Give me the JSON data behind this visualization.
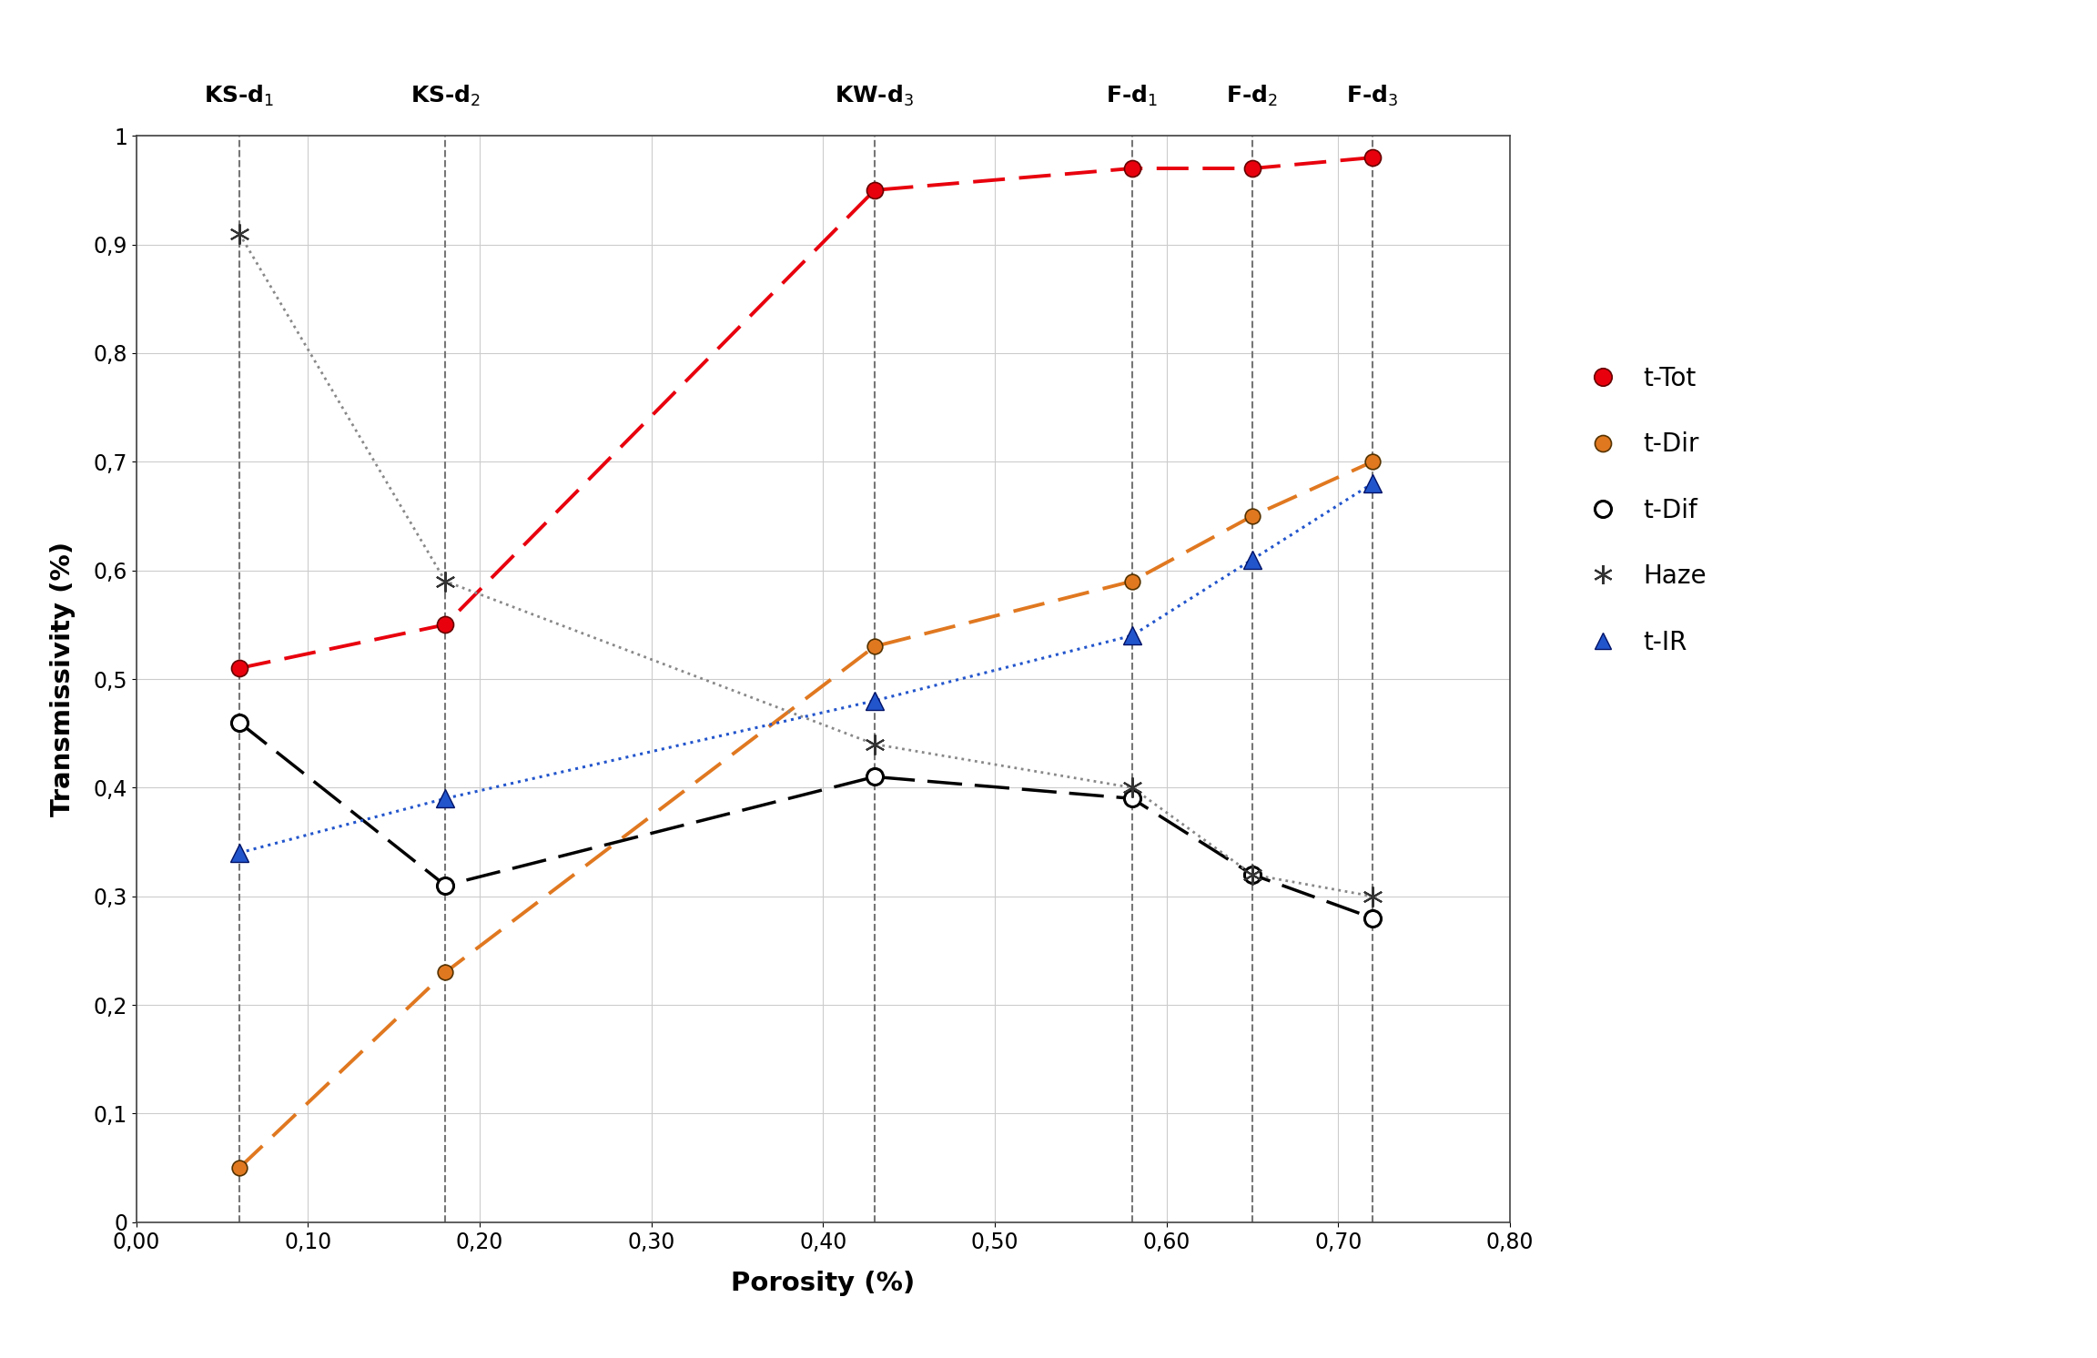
{
  "x": [
    0.06,
    0.18,
    0.43,
    0.58,
    0.65,
    0.72
  ],
  "vline_labels": [
    "KS-d$_1$",
    "KS-d$_2$",
    "KW-d$_3$",
    "F-d$_1$",
    "F-d$_2$",
    "F-d$_3$"
  ],
  "t_tot": [
    0.51,
    0.55,
    0.95,
    0.97,
    0.97,
    0.98
  ],
  "t_dir": [
    0.05,
    0.23,
    0.53,
    0.59,
    0.65,
    0.7
  ],
  "t_dif": [
    0.46,
    0.31,
    0.41,
    0.39,
    0.32,
    0.28
  ],
  "haze": [
    0.91,
    0.59,
    0.44,
    0.4,
    0.32,
    0.3
  ],
  "t_ir": [
    0.34,
    0.39,
    0.48,
    0.54,
    0.61,
    0.68
  ],
  "color_tot": "#e8000d",
  "color_dir": "#e07820",
  "color_dif": "#000000",
  "color_haze": "#888888",
  "color_ir": "#2255cc",
  "xlabel": "Porosity (%)",
  "ylabel": "Transmissivity (%)",
  "xlim": [
    0.0,
    0.8
  ],
  "ylim": [
    0.0,
    1.0
  ],
  "xticks": [
    0.0,
    0.1,
    0.2,
    0.3,
    0.4,
    0.5,
    0.6,
    0.7,
    0.8
  ],
  "yticks": [
    0.0,
    0.1,
    0.2,
    0.3,
    0.4,
    0.5,
    0.6,
    0.7,
    0.8,
    0.9,
    1.0
  ],
  "xtick_labels": [
    "0,00",
    "0,10",
    "0,20",
    "0,30",
    "0,40",
    "0,50",
    "0,60",
    "0,70",
    "0,80"
  ],
  "ytick_labels": [
    "0",
    "0,1",
    "0,2",
    "0,3",
    "0,4",
    "0,5",
    "0,6",
    "0,7",
    "0,8",
    "0,9",
    "1"
  ]
}
